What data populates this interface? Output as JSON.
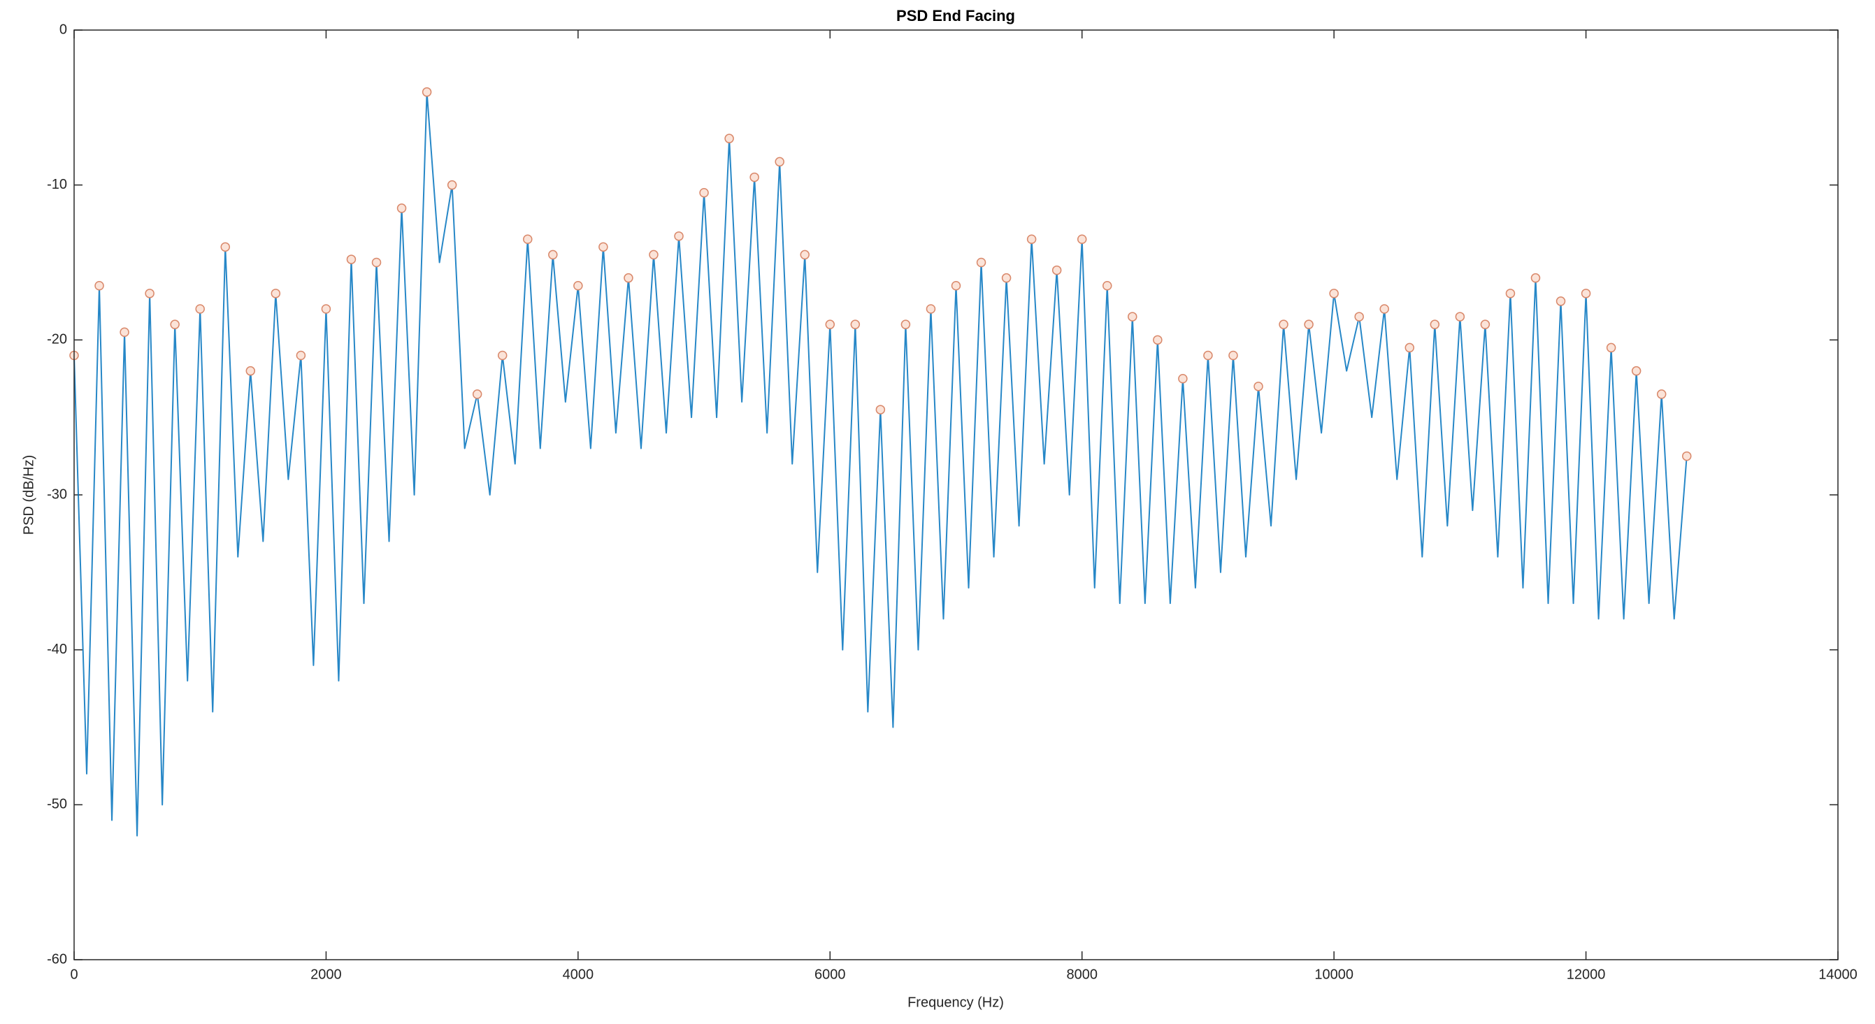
{
  "chart_data": {
    "type": "line",
    "title": "PSD End Facing",
    "xlabel": "Frequency (Hz)",
    "ylabel": "PSD (dB/Hz)",
    "xlim": [
      0,
      14000
    ],
    "xticks": [
      0,
      2000,
      4000,
      6000,
      8000,
      10000,
      12000,
      14000
    ],
    "ylim": [
      -60,
      0
    ],
    "yticks": [
      -60,
      -50,
      -40,
      -30,
      -20,
      -10,
      0
    ],
    "grid": false,
    "series": [
      {
        "color": "#0072bd",
        "mode": "line",
        "x": [
          0,
          100,
          200,
          300,
          400,
          500,
          600,
          700,
          800,
          900,
          1000,
          1100,
          1200,
          1300,
          1400,
          1500,
          1600,
          1700,
          1800,
          1900,
          2000,
          2100,
          2200,
          2300,
          2400,
          2500,
          2600,
          2700,
          2800,
          2900,
          3000,
          3100,
          3200,
          3300,
          3400,
          3500,
          3600,
          3700,
          3800,
          3900,
          4000,
          4100,
          4200,
          4300,
          4400,
          4500,
          4600,
          4700,
          4800,
          4900,
          5000,
          5100,
          5200,
          5300,
          5400,
          5500,
          5600,
          5700,
          5800,
          5900,
          6000,
          6100,
          6200,
          6300,
          6400,
          6500,
          6600,
          6700,
          6800,
          6900,
          7000,
          7100,
          7200,
          7300,
          7400,
          7500,
          7600,
          7700,
          7800,
          7900,
          8000,
          8100,
          8200,
          8300,
          8400,
          8500,
          8600,
          8700,
          8800,
          8900,
          9000,
          9100,
          9200,
          9300,
          9400,
          9500,
          9600,
          9700,
          9800,
          9900,
          10000,
          10100,
          10200,
          10300,
          10400,
          10500,
          10600,
          10700,
          10800,
          10900,
          11000,
          11100,
          11200,
          11300,
          11400,
          11500,
          11600,
          11700,
          11800,
          11900,
          12000,
          12100,
          12200,
          12300,
          12400,
          12500,
          12600,
          12700,
          12800
        ],
        "values": [
          -21,
          -48,
          -16.5,
          -51,
          -19.5,
          -52,
          -17,
          -50,
          -19,
          -42,
          -18,
          -44,
          -14,
          -34,
          -22,
          -33,
          -17,
          -29,
          -21,
          -41,
          -18,
          -42,
          -14.8,
          -37,
          -15,
          -33,
          -11.5,
          -30,
          -4,
          -15,
          -10,
          -27,
          -23.5,
          -30,
          -21,
          -28,
          -13.5,
          -27,
          -14.5,
          -24,
          -16.5,
          -27,
          -14,
          -26,
          -16,
          -27,
          -14.5,
          -26,
          -13.3,
          -25,
          -10.5,
          -25,
          -7,
          -24,
          -9.5,
          -26,
          -8.5,
          -28,
          -14.5,
          -35,
          -19,
          -40,
          -19,
          -44,
          -24.5,
          -45,
          -19,
          -40,
          -18,
          -38,
          -16.5,
          -36,
          -15,
          -34,
          -16,
          -32,
          -13.5,
          -28,
          -15.5,
          -30,
          -13.5,
          -36,
          -16.5,
          -37,
          -18.5,
          -37,
          -20,
          -37,
          -22.5,
          -36,
          -21,
          -35,
          -21,
          -34,
          -23,
          -32,
          -19,
          -29,
          -19,
          -26,
          -17,
          -22,
          -18.5,
          -25,
          -18,
          -29,
          -20.5,
          -34,
          -19,
          -32,
          -18.5,
          -31,
          -19,
          -34,
          -17,
          -36,
          -16,
          -37,
          -17.5,
          -37,
          -17,
          -38,
          -20.5,
          -38,
          -22,
          -37,
          -23.5,
          -38,
          -27.5
        ]
      },
      {
        "color": "#d9886a",
        "mode": "markers",
        "x": [
          0,
          200,
          400,
          600,
          800,
          1000,
          1200,
          1400,
          1600,
          1800,
          2000,
          2200,
          2400,
          2600,
          2800,
          3000,
          3200,
          3400,
          3600,
          3800,
          4000,
          4200,
          4400,
          4600,
          4800,
          5000,
          5200,
          5400,
          5600,
          5800,
          6000,
          6200,
          6400,
          6600,
          6800,
          7000,
          7200,
          7400,
          7600,
          7800,
          8000,
          8200,
          8400,
          8600,
          8800,
          9000,
          9200,
          9400,
          9600,
          9800,
          10000,
          10200,
          10400,
          10600,
          10800,
          11000,
          11200,
          11400,
          11600,
          11800,
          12000,
          12200,
          12400,
          12600,
          12800
        ],
        "values": [
          -21,
          -16.5,
          -19.5,
          -17,
          -19,
          -18,
          -14,
          -22,
          -17,
          -21,
          -18,
          -14.8,
          -15,
          -11.5,
          -4,
          -10,
          -23.5,
          -21,
          -13.5,
          -14.5,
          -16.5,
          -14,
          -16,
          -14.5,
          -13.3,
          -10.5,
          -7,
          -9.5,
          -8.5,
          -14.5,
          -19,
          -19,
          -24.5,
          -19,
          -18,
          -16.5,
          -15,
          -16,
          -13.5,
          -15.5,
          -13.5,
          -16.5,
          -18.5,
          -20,
          -22.5,
          -21,
          -21,
          -23,
          -19,
          -19,
          -17,
          -18.5,
          -18,
          -20.5,
          -19,
          -18.5,
          -19,
          -17,
          -16,
          -17.5,
          -17,
          -20.5,
          -22,
          -23.5,
          -27.5
        ]
      }
    ]
  }
}
